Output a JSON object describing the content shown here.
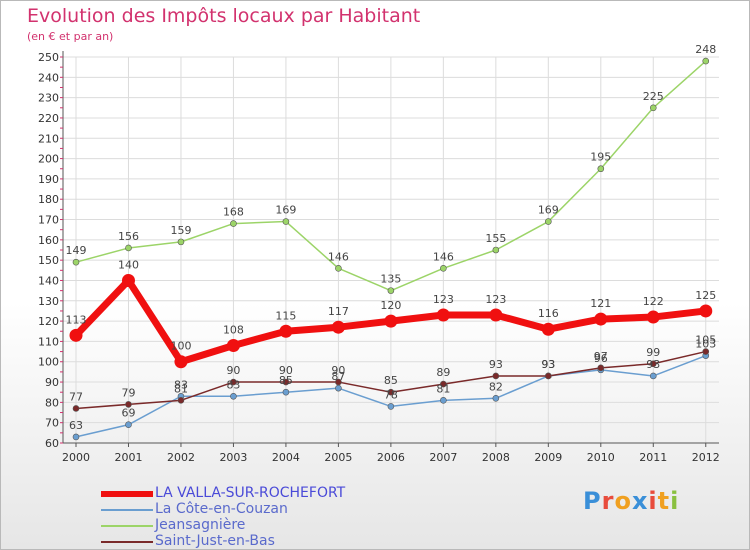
{
  "title": "Evolution des Impôts locaux par Habitant",
  "subtitle": "(en € et par an)",
  "logo_text": "Proxiti",
  "chart_data": {
    "type": "line",
    "x": [
      2000,
      2001,
      2002,
      2003,
      2004,
      2005,
      2006,
      2007,
      2008,
      2009,
      2010,
      2011,
      2012
    ],
    "ylim": [
      60,
      250
    ],
    "yticks": [
      60,
      70,
      80,
      90,
      100,
      110,
      120,
      130,
      140,
      150,
      160,
      170,
      180,
      190,
      200,
      210,
      220,
      230,
      240,
      250
    ],
    "grid": true,
    "legend_position": "bottom-left",
    "series": [
      {
        "name": "LA VALLA-SUR-ROCHEFORT",
        "color": "#f01010",
        "values": [
          113,
          140,
          100,
          108,
          115,
          117,
          120,
          123,
          123,
          116,
          121,
          122,
          125
        ]
      },
      {
        "name": "La Côte-en-Couzan",
        "color": "#6a9ed0",
        "values": [
          63,
          69,
          83,
          83,
          85,
          87,
          78,
          81,
          82,
          93,
          96,
          93,
          103
        ]
      },
      {
        "name": "Jeansagnière",
        "color": "#9cd468",
        "values": [
          149,
          156,
          159,
          168,
          169,
          146,
          135,
          146,
          155,
          169,
          195,
          225,
          248
        ]
      },
      {
        "name": "Saint-Just-en-Bas",
        "color": "#7a2a2a",
        "values": [
          77,
          79,
          81,
          90,
          90,
          90,
          85,
          89,
          93,
          93,
          97,
          99,
          105
        ]
      }
    ]
  }
}
